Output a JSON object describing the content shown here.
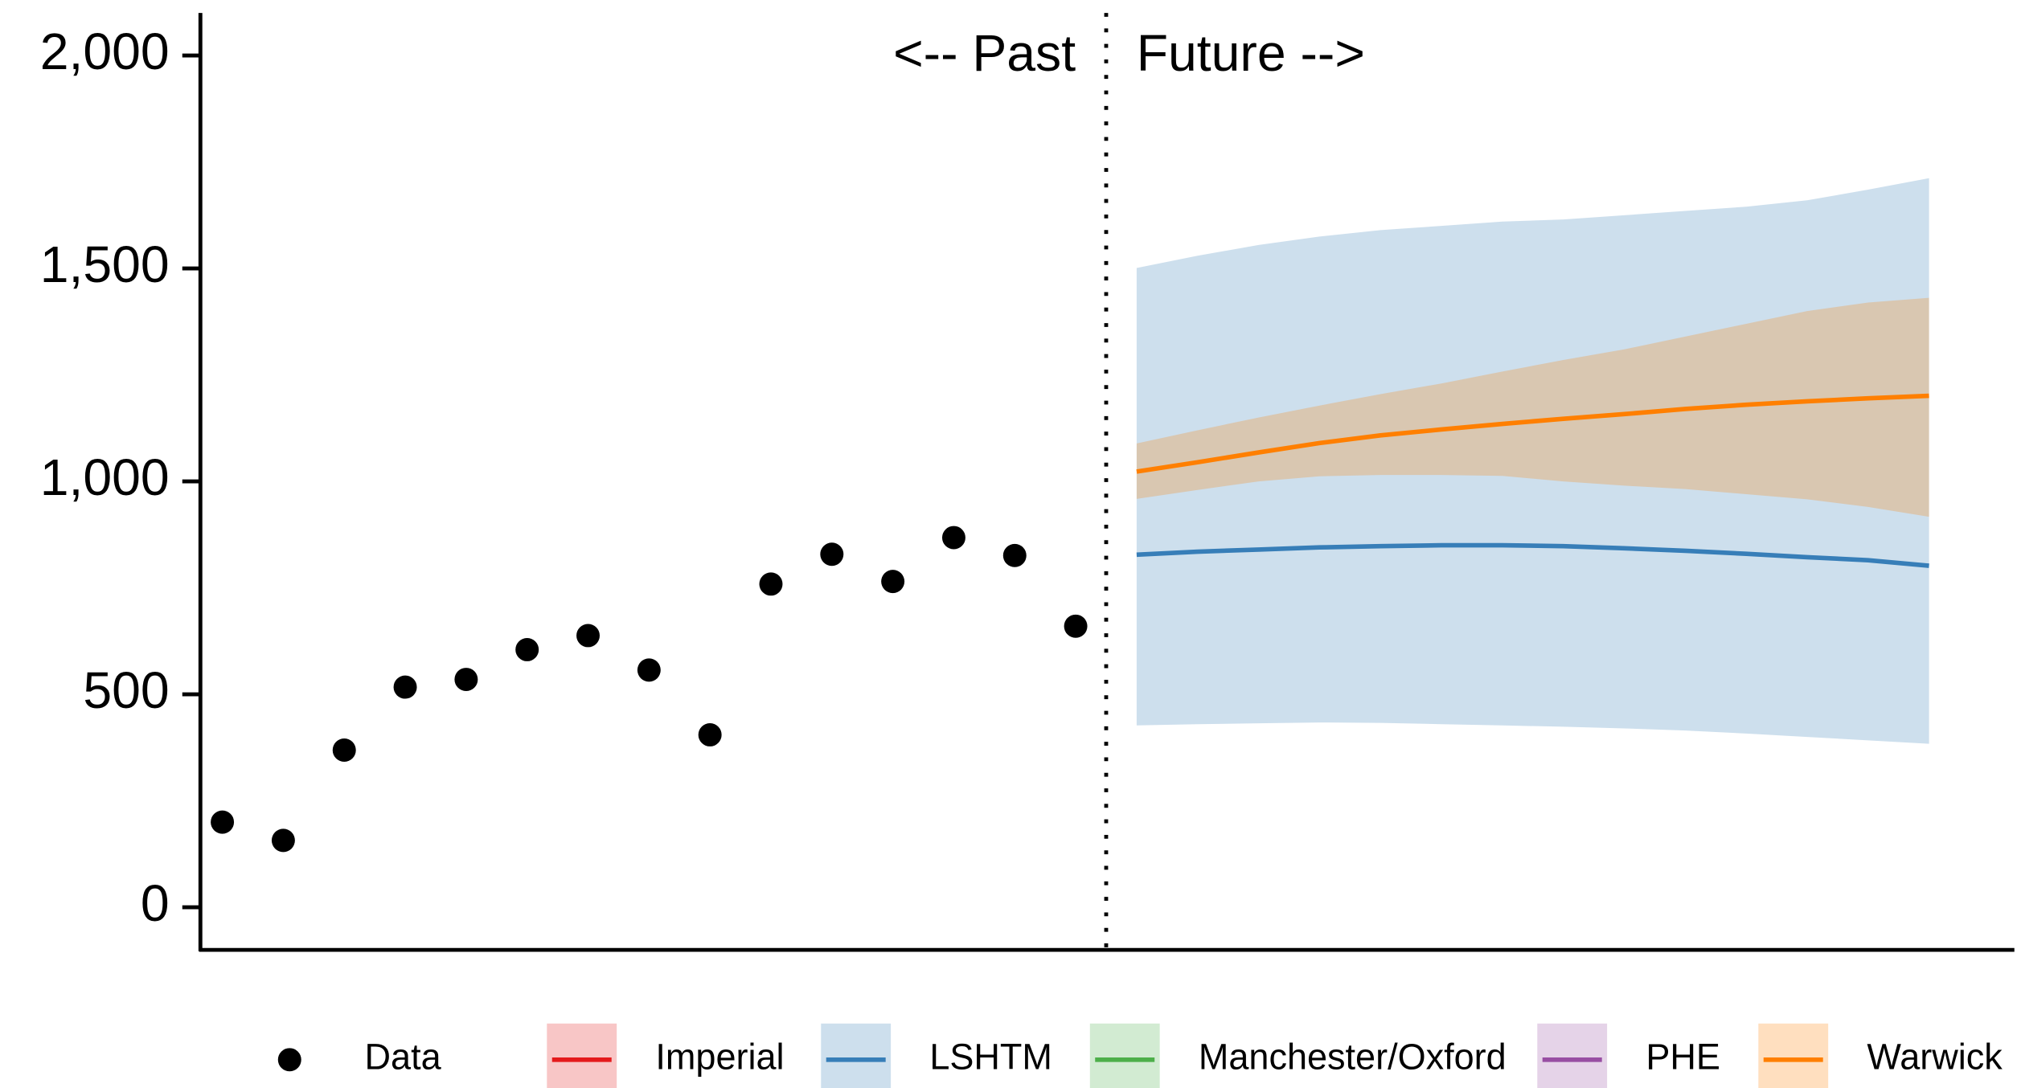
{
  "chart_data": {
    "type": "forecast",
    "annotations": [
      "<-- Past",
      "Future -->"
    ],
    "divider_x": 15.5,
    "xlim": [
      0.64,
      30.4
    ],
    "ylim": [
      -100,
      2100
    ],
    "yticks": [
      0,
      500,
      {
        "value": 1000,
        "label": "1,000"
      },
      {
        "value": 1500,
        "label": "1,500"
      },
      {
        "value": 2000,
        "label": "2,000"
      }
    ],
    "band_opacity": 0.25,
    "series": [
      {
        "name": "Data",
        "color": "#000000",
        "x": [
          1,
          2,
          3,
          4,
          5,
          6,
          7,
          8,
          9,
          10,
          11,
          12,
          13,
          14,
          15
        ],
        "values": [
          200,
          157,
          369,
          517,
          535,
          605,
          638,
          557,
          405,
          759,
          829,
          765,
          868,
          826,
          660
        ]
      },
      {
        "name": "Imperial",
        "color": "#e41a1c",
        "x": [],
        "values": [],
        "lower": [],
        "upper": []
      },
      {
        "name": "LSHTM",
        "color": "#377eb8",
        "x": [
          16,
          17,
          18,
          19,
          20,
          21,
          22,
          23,
          24,
          25,
          26,
          27,
          28,
          29
        ],
        "values": [
          828,
          835,
          840,
          845,
          848,
          850,
          850,
          848,
          843,
          837,
          830,
          822,
          815,
          802
        ],
        "lower": [
          427,
          430,
          432,
          434,
          433,
          430,
          427,
          424,
          420,
          415,
          408,
          400,
          392,
          384
        ],
        "upper": [
          1501,
          1530,
          1555,
          1575,
          1590,
          1600,
          1610,
          1615,
          1625,
          1635,
          1645,
          1660,
          1685,
          1712
        ]
      },
      {
        "name": "Manchester/Oxford",
        "color": "#4daf4a",
        "x": [],
        "values": [],
        "lower": [],
        "upper": []
      },
      {
        "name": "PHE",
        "color": "#984ea3",
        "x": [],
        "values": [],
        "lower": [],
        "upper": []
      },
      {
        "name": "Warwick",
        "color": "#ff7f00",
        "x": [
          16,
          17,
          18,
          19,
          20,
          21,
          22,
          23,
          24,
          25,
          26,
          27,
          28,
          29
        ],
        "values": [
          1023,
          1045,
          1068,
          1090,
          1108,
          1122,
          1135,
          1147,
          1158,
          1170,
          1180,
          1188,
          1195,
          1201
        ],
        "lower": [
          959,
          980,
          1000,
          1012,
          1015,
          1015,
          1013,
          1000,
          990,
          982,
          970,
          958,
          940,
          917
        ],
        "upper": [
          1089,
          1120,
          1150,
          1178,
          1205,
          1230,
          1258,
          1285,
          1310,
          1340,
          1370,
          1400,
          1420,
          1431
        ]
      }
    ]
  }
}
